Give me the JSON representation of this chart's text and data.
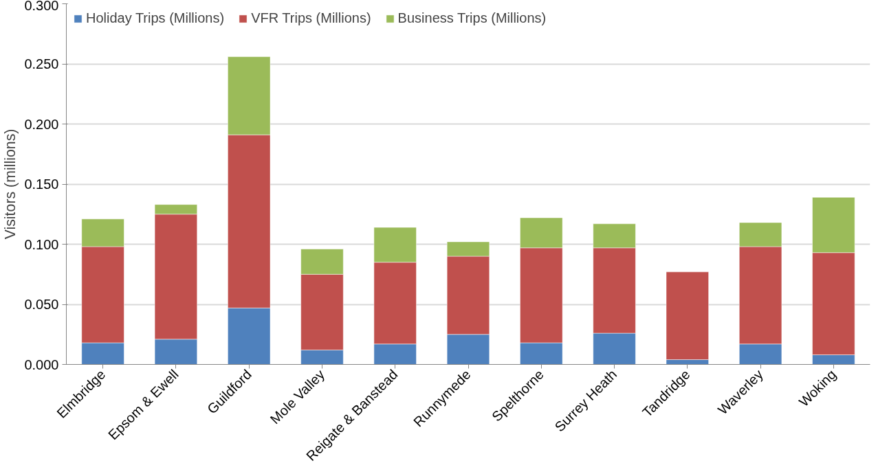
{
  "chart_data": {
    "type": "bar",
    "stacked": true,
    "ylabel": "Visitors (millions)",
    "categories": [
      "Elmbridge",
      "Epsom & Ewell",
      "Guildford",
      "Mole Valley",
      "Reigate & Banstead",
      "Runnymede",
      "Spelthorne",
      "Surrey Heath",
      "Tandridge",
      "Waverley",
      "Woking"
    ],
    "series": [
      {
        "name": "Holiday Trips (Millions)",
        "color": "#4f81bd",
        "values": [
          0.018,
          0.021,
          0.047,
          0.012,
          0.017,
          0.025,
          0.018,
          0.026,
          0.004,
          0.017,
          0.008
        ]
      },
      {
        "name": "VFR Trips (Millions)",
        "color": "#c0504d",
        "values": [
          0.08,
          0.104,
          0.144,
          0.063,
          0.068,
          0.065,
          0.079,
          0.071,
          0.073,
          0.081,
          0.085
        ]
      },
      {
        "name": "Business Trips (Millions)",
        "color": "#9bbb59",
        "values": [
          0.023,
          0.008,
          0.065,
          0.021,
          0.029,
          0.012,
          0.025,
          0.02,
          null,
          0.02,
          0.046
        ]
      }
    ],
    "ylim": [
      0,
      0.3
    ],
    "yticks": [
      {
        "value": 0,
        "label": "0.000"
      },
      {
        "value": 0.05,
        "label": "0.050"
      },
      {
        "value": 0.1,
        "label": "0.100"
      },
      {
        "value": 0.15,
        "label": "0.150"
      },
      {
        "value": 0.2,
        "label": "0.200"
      },
      {
        "value": 0.25,
        "label": "0.250"
      },
      {
        "value": 0.3,
        "label": "0.300"
      }
    ],
    "grid": "y",
    "legend": "top left"
  }
}
